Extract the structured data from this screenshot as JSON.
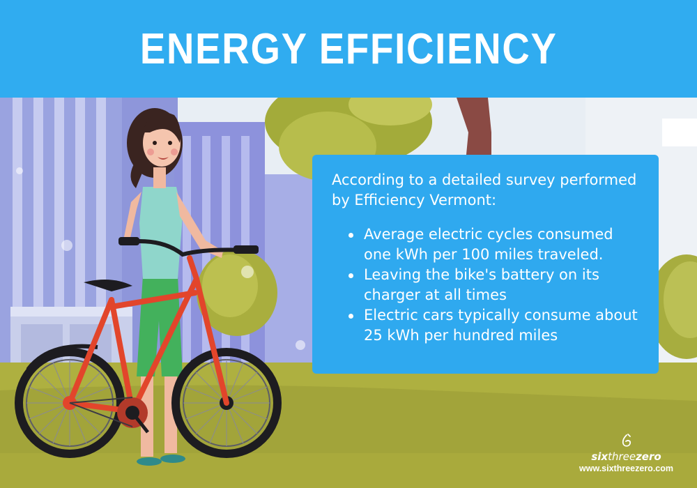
{
  "header": {
    "title": "ENERGY EFFICIENCY"
  },
  "info": {
    "intro": "According to a detailed survey performed by Efficiency Vermont:",
    "bullets": [
      "Average electric cycles consumed one kWh per 100 miles traveled.",
      "Leaving the bike's battery on its charger at all times",
      "Electric cars typically consume about 25 kWh per hundred miles"
    ]
  },
  "brand": {
    "name_part1": "six",
    "name_part2": "three",
    "name_part3": "zero",
    "url": "www.sixthreezero.com"
  },
  "colors": {
    "header": "#30acf0",
    "info_panel": "#2fa9ef",
    "bike_frame": "#e2452b",
    "grass": "#aeb040"
  },
  "icons": [
    "sixthreezero-logo-icon"
  ]
}
